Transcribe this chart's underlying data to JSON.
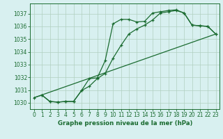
{
  "title": "Graphe pression niveau de la mer (hPa)",
  "bg_color": "#d8f0f0",
  "grid_color_major": "#b0d0c0",
  "grid_color_minor": "#c8e0d8",
  "line_color": "#1a6b30",
  "xlim": [
    -0.5,
    23.5
  ],
  "ylim": [
    1029.5,
    1037.8
  ],
  "yticks": [
    1030,
    1031,
    1032,
    1033,
    1034,
    1035,
    1036,
    1037
  ],
  "xticks": [
    0,
    1,
    2,
    3,
    4,
    5,
    6,
    7,
    8,
    9,
    10,
    11,
    12,
    13,
    14,
    15,
    16,
    17,
    18,
    19,
    20,
    21,
    22,
    23
  ],
  "line1_x": [
    0,
    1,
    2,
    3,
    4,
    5,
    6,
    7,
    8,
    9,
    10,
    11,
    12,
    13,
    14,
    15,
    16,
    17,
    18,
    19,
    20,
    21,
    22,
    23
  ],
  "line1_y": [
    1030.4,
    1030.6,
    1030.1,
    1030.05,
    1030.1,
    1030.1,
    1030.95,
    1031.9,
    1031.95,
    1033.3,
    1036.2,
    1036.55,
    1036.55,
    1036.35,
    1036.4,
    1037.05,
    1037.15,
    1037.25,
    1037.3,
    1037.05,
    1036.1,
    1036.05,
    1036.0,
    1035.4
  ],
  "line2_x": [
    1,
    2,
    3,
    4,
    5,
    6,
    7,
    8,
    9,
    10,
    11,
    12,
    13,
    14,
    15,
    16,
    17,
    18,
    19,
    20,
    21,
    22,
    23
  ],
  "line2_y": [
    1030.6,
    1030.1,
    1030.05,
    1030.1,
    1030.1,
    1030.95,
    1031.3,
    1031.9,
    1032.3,
    1033.5,
    1034.5,
    1035.4,
    1035.8,
    1036.1,
    1036.5,
    1037.05,
    1037.15,
    1037.25,
    1037.05,
    1036.1,
    1036.05,
    1036.0,
    1035.4
  ],
  "line3_x": [
    0,
    23
  ],
  "line3_y": [
    1030.4,
    1035.4
  ],
  "tick_fontsize": 5.5,
  "label_fontsize": 6.2
}
